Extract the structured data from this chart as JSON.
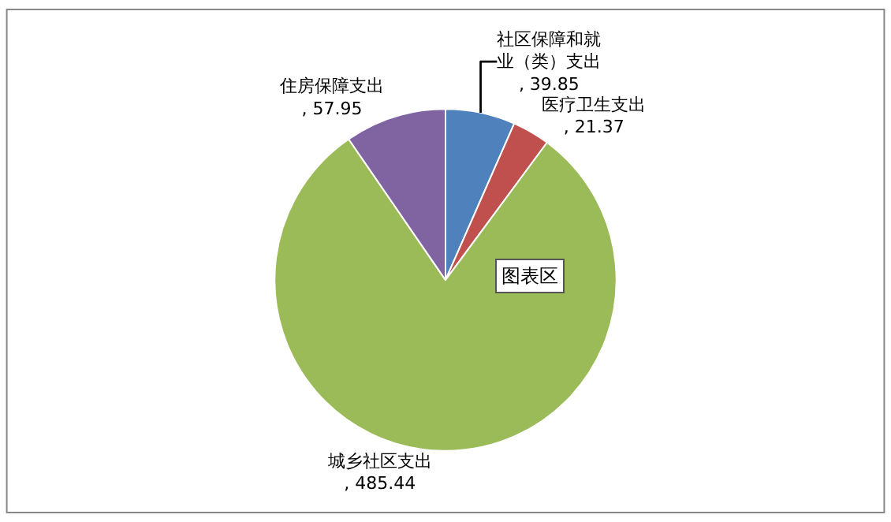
{
  "chart_data": {
    "type": "pie",
    "categories": [
      "社区保障和就业（类）支出",
      "医疗卫生支出",
      "城乡社区支出",
      "住房保障支出"
    ],
    "values": [
      39.85,
      21.37,
      485.44,
      57.95
    ],
    "colors": [
      "#4f81bd",
      "#c0504d",
      "#9bbb59",
      "#8064a2"
    ],
    "value_labels": [
      ", 39.85",
      ", 21.37",
      ", 485.44",
      ", 57.95"
    ],
    "legend": false,
    "annotations": [
      "图表区"
    ]
  }
}
